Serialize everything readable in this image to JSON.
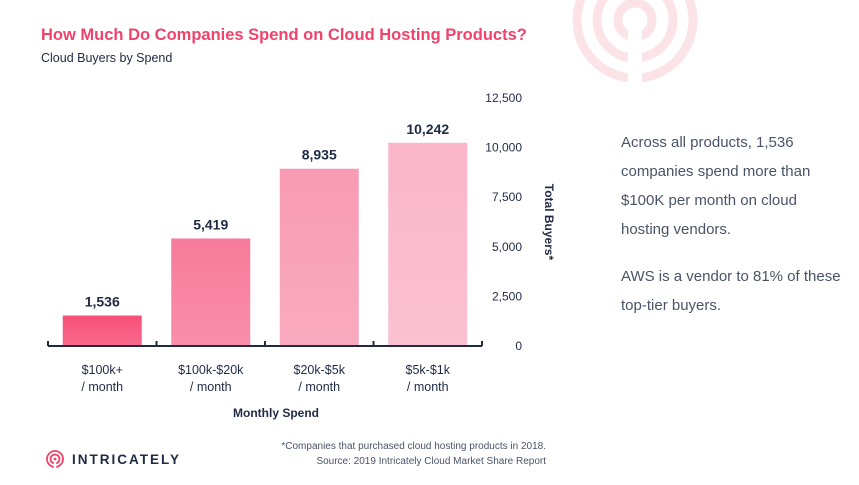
{
  "header": {
    "title": "How Much Do Companies Spend on Cloud Hosting Products?",
    "subtitle": "Cloud Buyers by Spend"
  },
  "colors": {
    "accent": "#f0436b",
    "bar_gradient": [
      "#f74f78",
      "#f77b9b",
      "#f89bb4",
      "#f9b6c8"
    ],
    "text": "#1f2a44"
  },
  "chart_data": {
    "type": "bar",
    "title": "How Much Do Companies Spend on Cloud Hosting Products?",
    "subtitle": "Cloud Buyers by Spend",
    "categories": [
      [
        "$100k+",
        "/ month"
      ],
      [
        "$100k-$20k",
        "/ month"
      ],
      [
        "$20k-$5k",
        "/ month"
      ],
      [
        "$5k-$1k",
        "/ month"
      ]
    ],
    "values": [
      1536,
      5419,
      8935,
      10242
    ],
    "value_labels": [
      "1,536",
      "5,419",
      "8,935",
      "10,242"
    ],
    "xlabel": "Monthly Spend",
    "ylabel": "Total Buyers*",
    "ylim": [
      0,
      12500
    ],
    "yticks": [
      0,
      2500,
      5000,
      7500,
      10000,
      12500
    ],
    "ytick_labels": [
      "0",
      "2,500",
      "5,000",
      "7,500",
      "10,000",
      "12,500"
    ],
    "y_axis_side": "right",
    "grid": false
  },
  "callouts": [
    "Across all products, 1,536 companies spend more than $100K per month on cloud hosting vendors.",
    "AWS is a vendor to 81% of these top-tier buyers."
  ],
  "footer": {
    "logo_text": "INTRICATELY",
    "footnote": "*Companies that purchased cloud hosting products in 2018.",
    "source": "Source: 2019 Intricately Cloud Market Share Report"
  }
}
